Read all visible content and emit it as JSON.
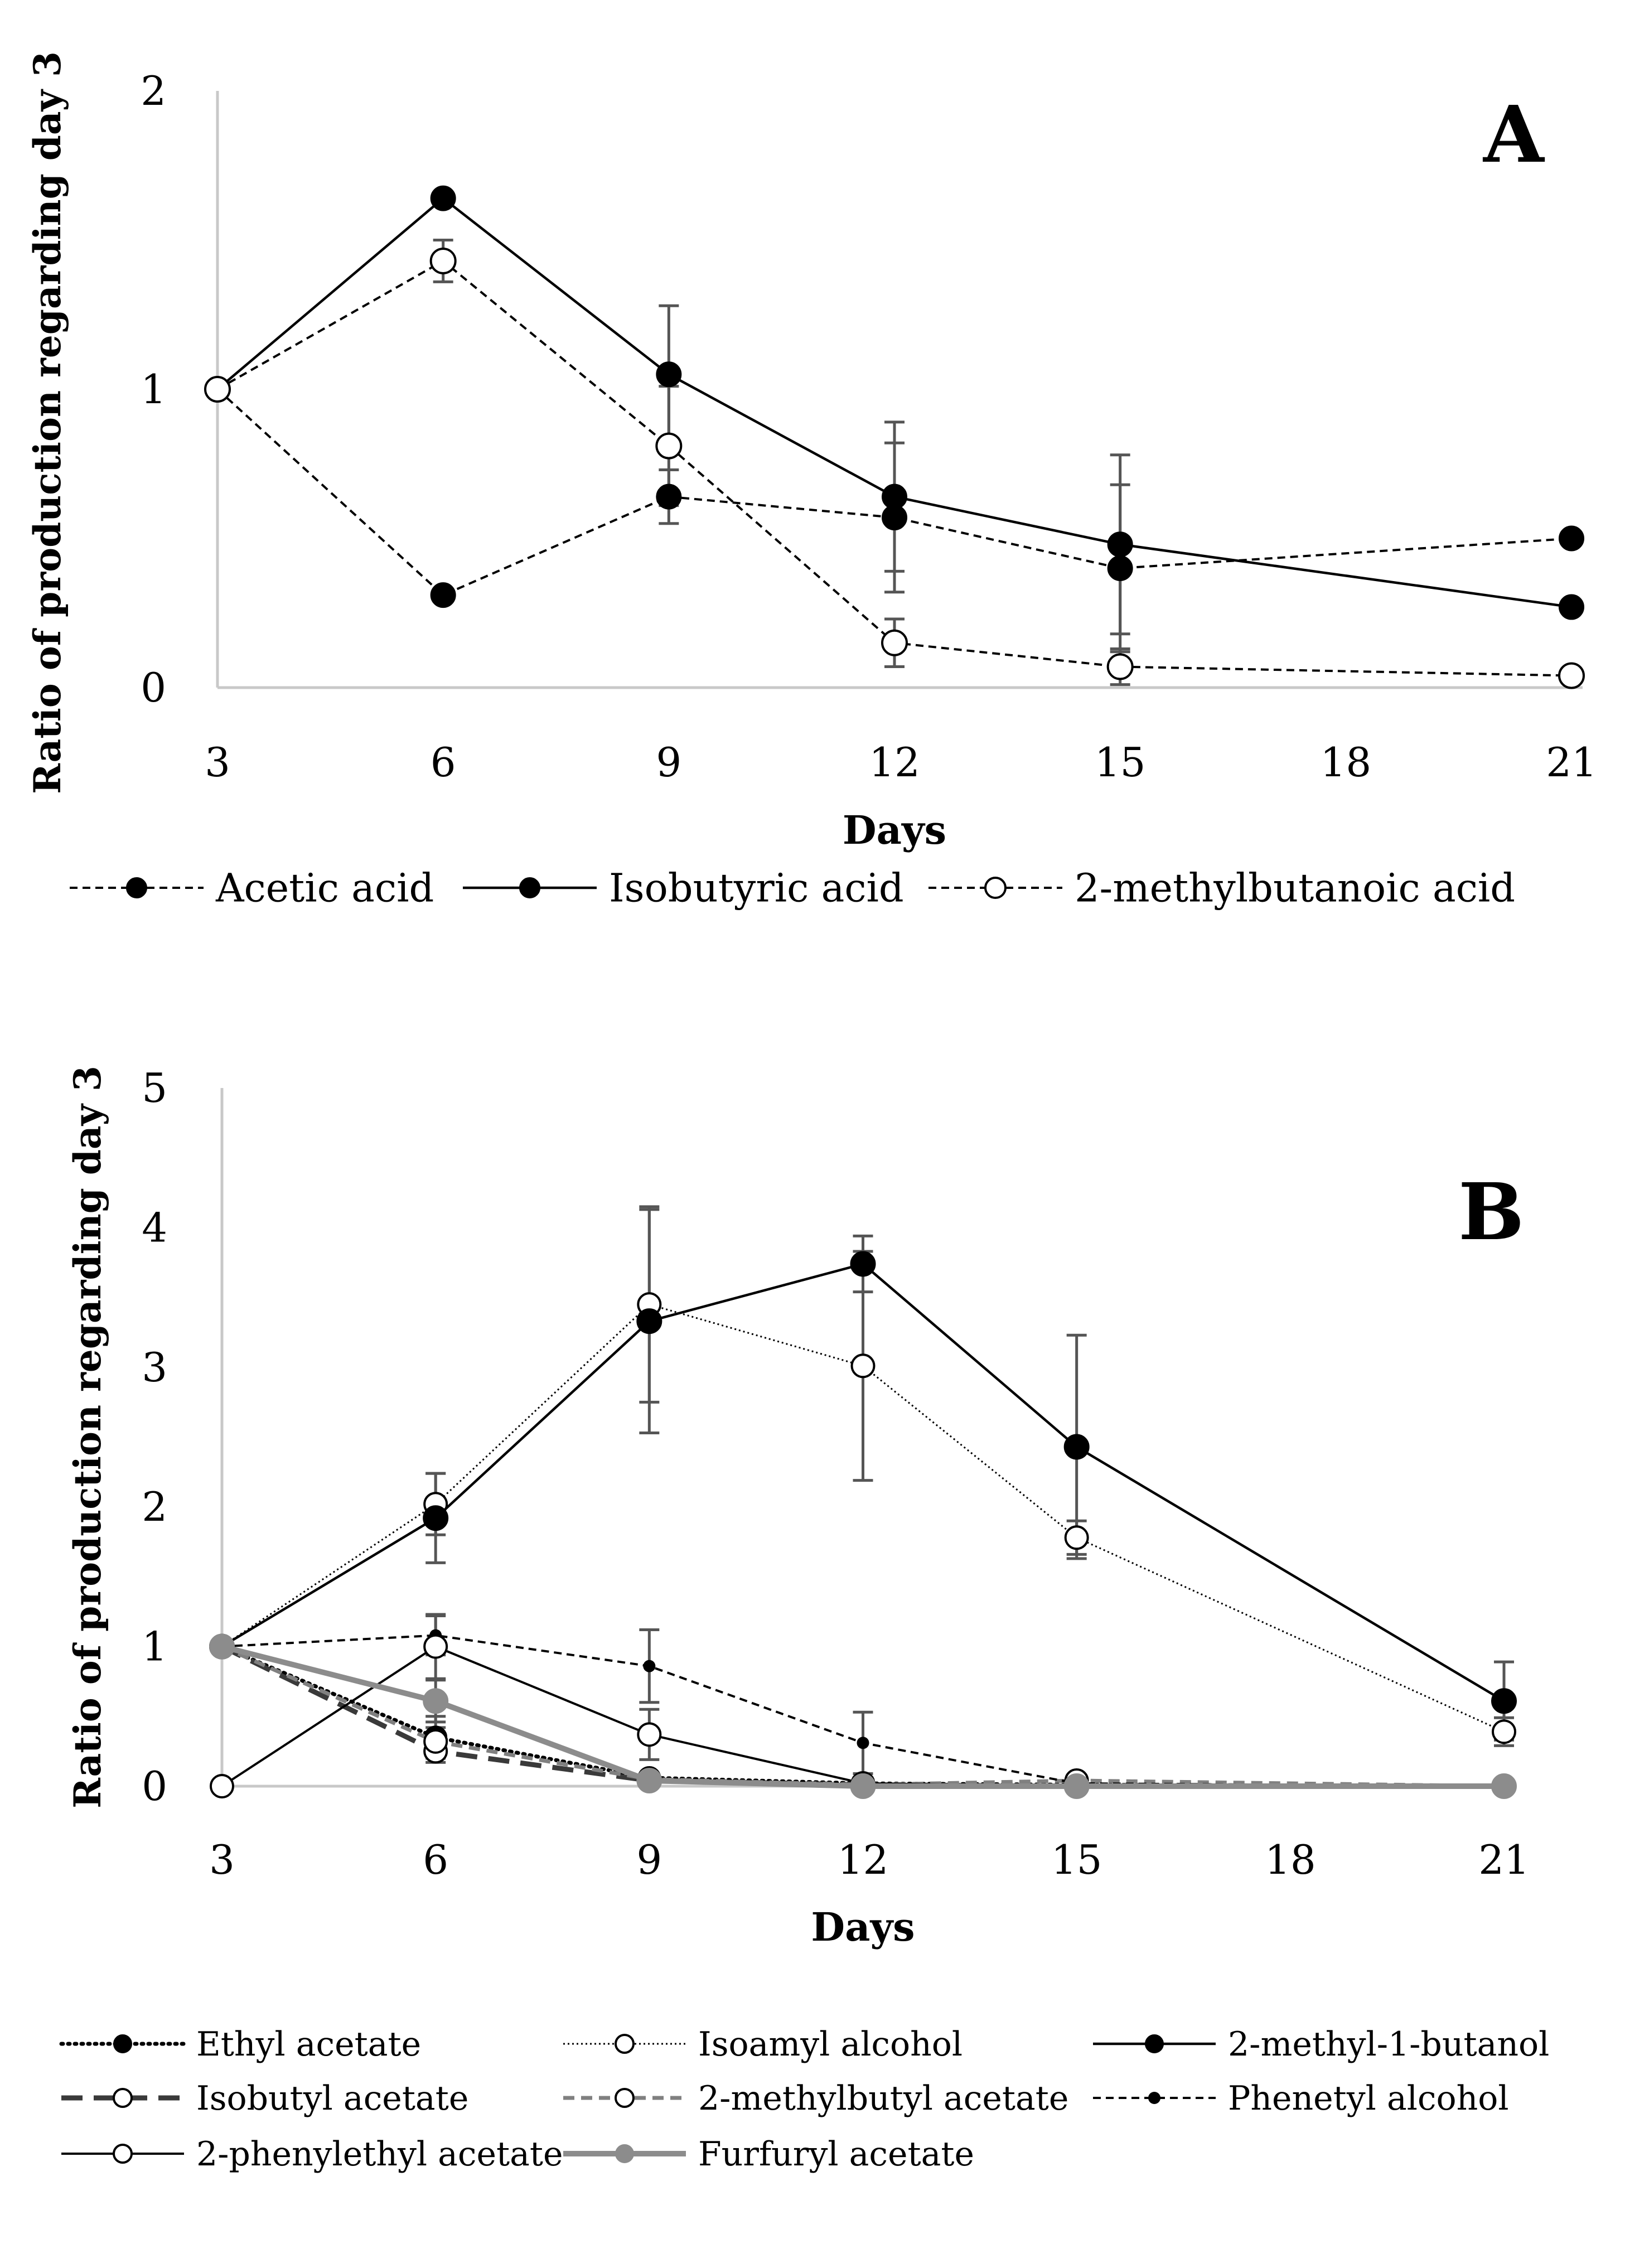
{
  "chart_data": [
    {
      "type": "line",
      "panel_letter": "A",
      "xlabel": "Days",
      "ylabel": "Ratio of production regarding day 3",
      "xlim": [
        3,
        21
      ],
      "ylim": [
        0,
        2
      ],
      "x_ticks": [
        "3",
        "6",
        "9",
        "12",
        "15",
        "18",
        "21"
      ],
      "y_ticks": [
        "0",
        "1",
        "2"
      ],
      "grid": false,
      "legend_position": "bottom",
      "series": [
        {
          "name": "Acetic acid",
          "line": "dashed",
          "marker": "filled",
          "x": [
            3,
            6,
            9,
            12,
            15,
            21
          ],
          "y": [
            1.0,
            0.31,
            0.64,
            0.57,
            0.4,
            0.5
          ],
          "err": [
            0,
            0.02,
            0.09,
            0.25,
            0.28,
            0.02
          ]
        },
        {
          "name": "Isobutyric acid",
          "line": "solid",
          "marker": "filled",
          "x": [
            3,
            6,
            9,
            12,
            15,
            21
          ],
          "y": [
            1.0,
            1.64,
            1.05,
            0.64,
            0.48,
            0.27
          ],
          "err": [
            0,
            0.02,
            0.23,
            0.25,
            0.3,
            0.02
          ]
        },
        {
          "name": "2-methylbutanoic acid",
          "line": "dashed",
          "marker": "open",
          "x": [
            3,
            6,
            9,
            12,
            15,
            21
          ],
          "y": [
            1.0,
            1.43,
            0.81,
            0.15,
            0.07,
            0.04
          ],
          "err": [
            0,
            0.07,
            0.2,
            0.08,
            0.06,
            0.01
          ]
        }
      ]
    },
    {
      "type": "line",
      "panel_letter": "B",
      "xlabel": "Days",
      "ylabel": "Ratio of production regarding day 3",
      "xlim": [
        3,
        21
      ],
      "ylim": [
        0,
        5
      ],
      "x_ticks": [
        "3",
        "6",
        "9",
        "12",
        "15",
        "18",
        "21"
      ],
      "y_ticks": [
        "0",
        "1",
        "2",
        "3",
        "4",
        "5"
      ],
      "grid": false,
      "legend_position": "bottom",
      "series": [
        {
          "name": "Ethyl acetate",
          "line": "dotted-bold",
          "marker": "filled",
          "x": [
            3,
            6,
            9,
            12,
            15,
            21
          ],
          "y": [
            1.0,
            0.35,
            0.06,
            0.02,
            0.01,
            0.0
          ],
          "err": [
            0,
            0.15,
            0.03,
            0,
            0,
            0
          ]
        },
        {
          "name": "Isoamyl alcohol",
          "line": "dotted",
          "marker": "open",
          "x": [
            3,
            6,
            9,
            12,
            15,
            21
          ],
          "y": [
            1.0,
            2.02,
            3.45,
            3.01,
            1.78,
            0.39
          ],
          "err": [
            0,
            0.22,
            0.7,
            0.82,
            0.12,
            0.1
          ]
        },
        {
          "name": "2-methyl-1-butanol",
          "line": "solid",
          "marker": "filled",
          "x": [
            3,
            6,
            9,
            12,
            15,
            21
          ],
          "y": [
            1.0,
            1.92,
            3.33,
            3.74,
            2.43,
            0.61
          ],
          "err": [
            0,
            0.32,
            0.8,
            0.2,
            0.8,
            0.28
          ]
        },
        {
          "name": "Isobutyl acetate",
          "line": "long-dash-dark",
          "marker": "open",
          "x": [
            3,
            6,
            9,
            12,
            15,
            21
          ],
          "y": [
            1.0,
            0.25,
            0.04,
            0.01,
            0.0,
            0.0
          ],
          "err": [
            0,
            0.08,
            0,
            0,
            0,
            0
          ]
        },
        {
          "name": "2-methylbutyl acetate",
          "line": "dashed-gray",
          "marker": "open",
          "x": [
            3,
            6,
            9,
            12,
            15,
            21
          ],
          "y": [
            1.0,
            0.32,
            0.05,
            0.01,
            0.04,
            0.0
          ],
          "err": [
            0,
            0.1,
            0,
            0,
            0,
            0
          ]
        },
        {
          "name": "Phenetyl alcohol",
          "line": "dashed",
          "marker": "small-filled",
          "x": [
            3,
            6,
            9,
            12,
            15,
            21
          ],
          "y": [
            1.0,
            1.08,
            0.86,
            0.31,
            0.02,
            0.0
          ],
          "err": [
            0,
            0.14,
            0.26,
            0.22,
            0,
            0
          ]
        },
        {
          "name": "2-phenylethyl acetate",
          "line": "solid-thin",
          "marker": "open",
          "x": [
            3,
            6,
            9,
            12,
            15,
            21
          ],
          "y": [
            0.0,
            1.0,
            0.37,
            0.02,
            0.0,
            0.0
          ],
          "err": [
            0,
            0.23,
            0.18,
            0,
            0,
            0
          ]
        },
        {
          "name": "Furfuryl acetate",
          "line": "solid-gray-thick",
          "marker": "filled-gray",
          "x": [
            3,
            6,
            9,
            12,
            15,
            21
          ],
          "y": [
            1.0,
            0.61,
            0.04,
            0.0,
            0.0,
            0.0
          ],
          "err": [
            0,
            0.15,
            0.03,
            0,
            0,
            0
          ]
        }
      ]
    }
  ]
}
